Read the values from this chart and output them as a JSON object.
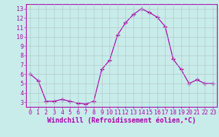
{
  "x": [
    0,
    1,
    2,
    3,
    4,
    5,
    6,
    7,
    8,
    9,
    10,
    11,
    12,
    13,
    14,
    15,
    16,
    17,
    18,
    19,
    20,
    21,
    22,
    23
  ],
  "y": [
    6.0,
    5.3,
    3.1,
    3.1,
    3.3,
    3.1,
    2.9,
    2.8,
    3.1,
    6.5,
    7.5,
    10.2,
    11.5,
    12.4,
    13.0,
    12.6,
    12.1,
    11.1,
    7.6,
    6.5,
    5.0,
    5.4,
    5.0,
    5.0
  ],
  "line_color": "#aa00aa",
  "marker": "+",
  "marker_size": 4,
  "marker_color": "#aa00aa",
  "bg_color": "#c8ecea",
  "grid_color": "#b0c8c8",
  "xlabel": "Windchill (Refroidissement éolien,°C)",
  "xlim": [
    -0.5,
    23.5
  ],
  "ylim": [
    2.5,
    13.5
  ],
  "yticks": [
    3,
    4,
    5,
    6,
    7,
    8,
    9,
    10,
    11,
    12,
    13
  ],
  "xticks": [
    0,
    1,
    2,
    3,
    4,
    5,
    6,
    7,
    8,
    9,
    10,
    11,
    12,
    13,
    14,
    15,
    16,
    17,
    18,
    19,
    20,
    21,
    22,
    23
  ],
  "tick_color": "#aa00aa",
  "axis_color": "#aa00aa",
  "label_color": "#aa00aa",
  "xlabel_fontsize": 7,
  "tick_fontsize": 6
}
